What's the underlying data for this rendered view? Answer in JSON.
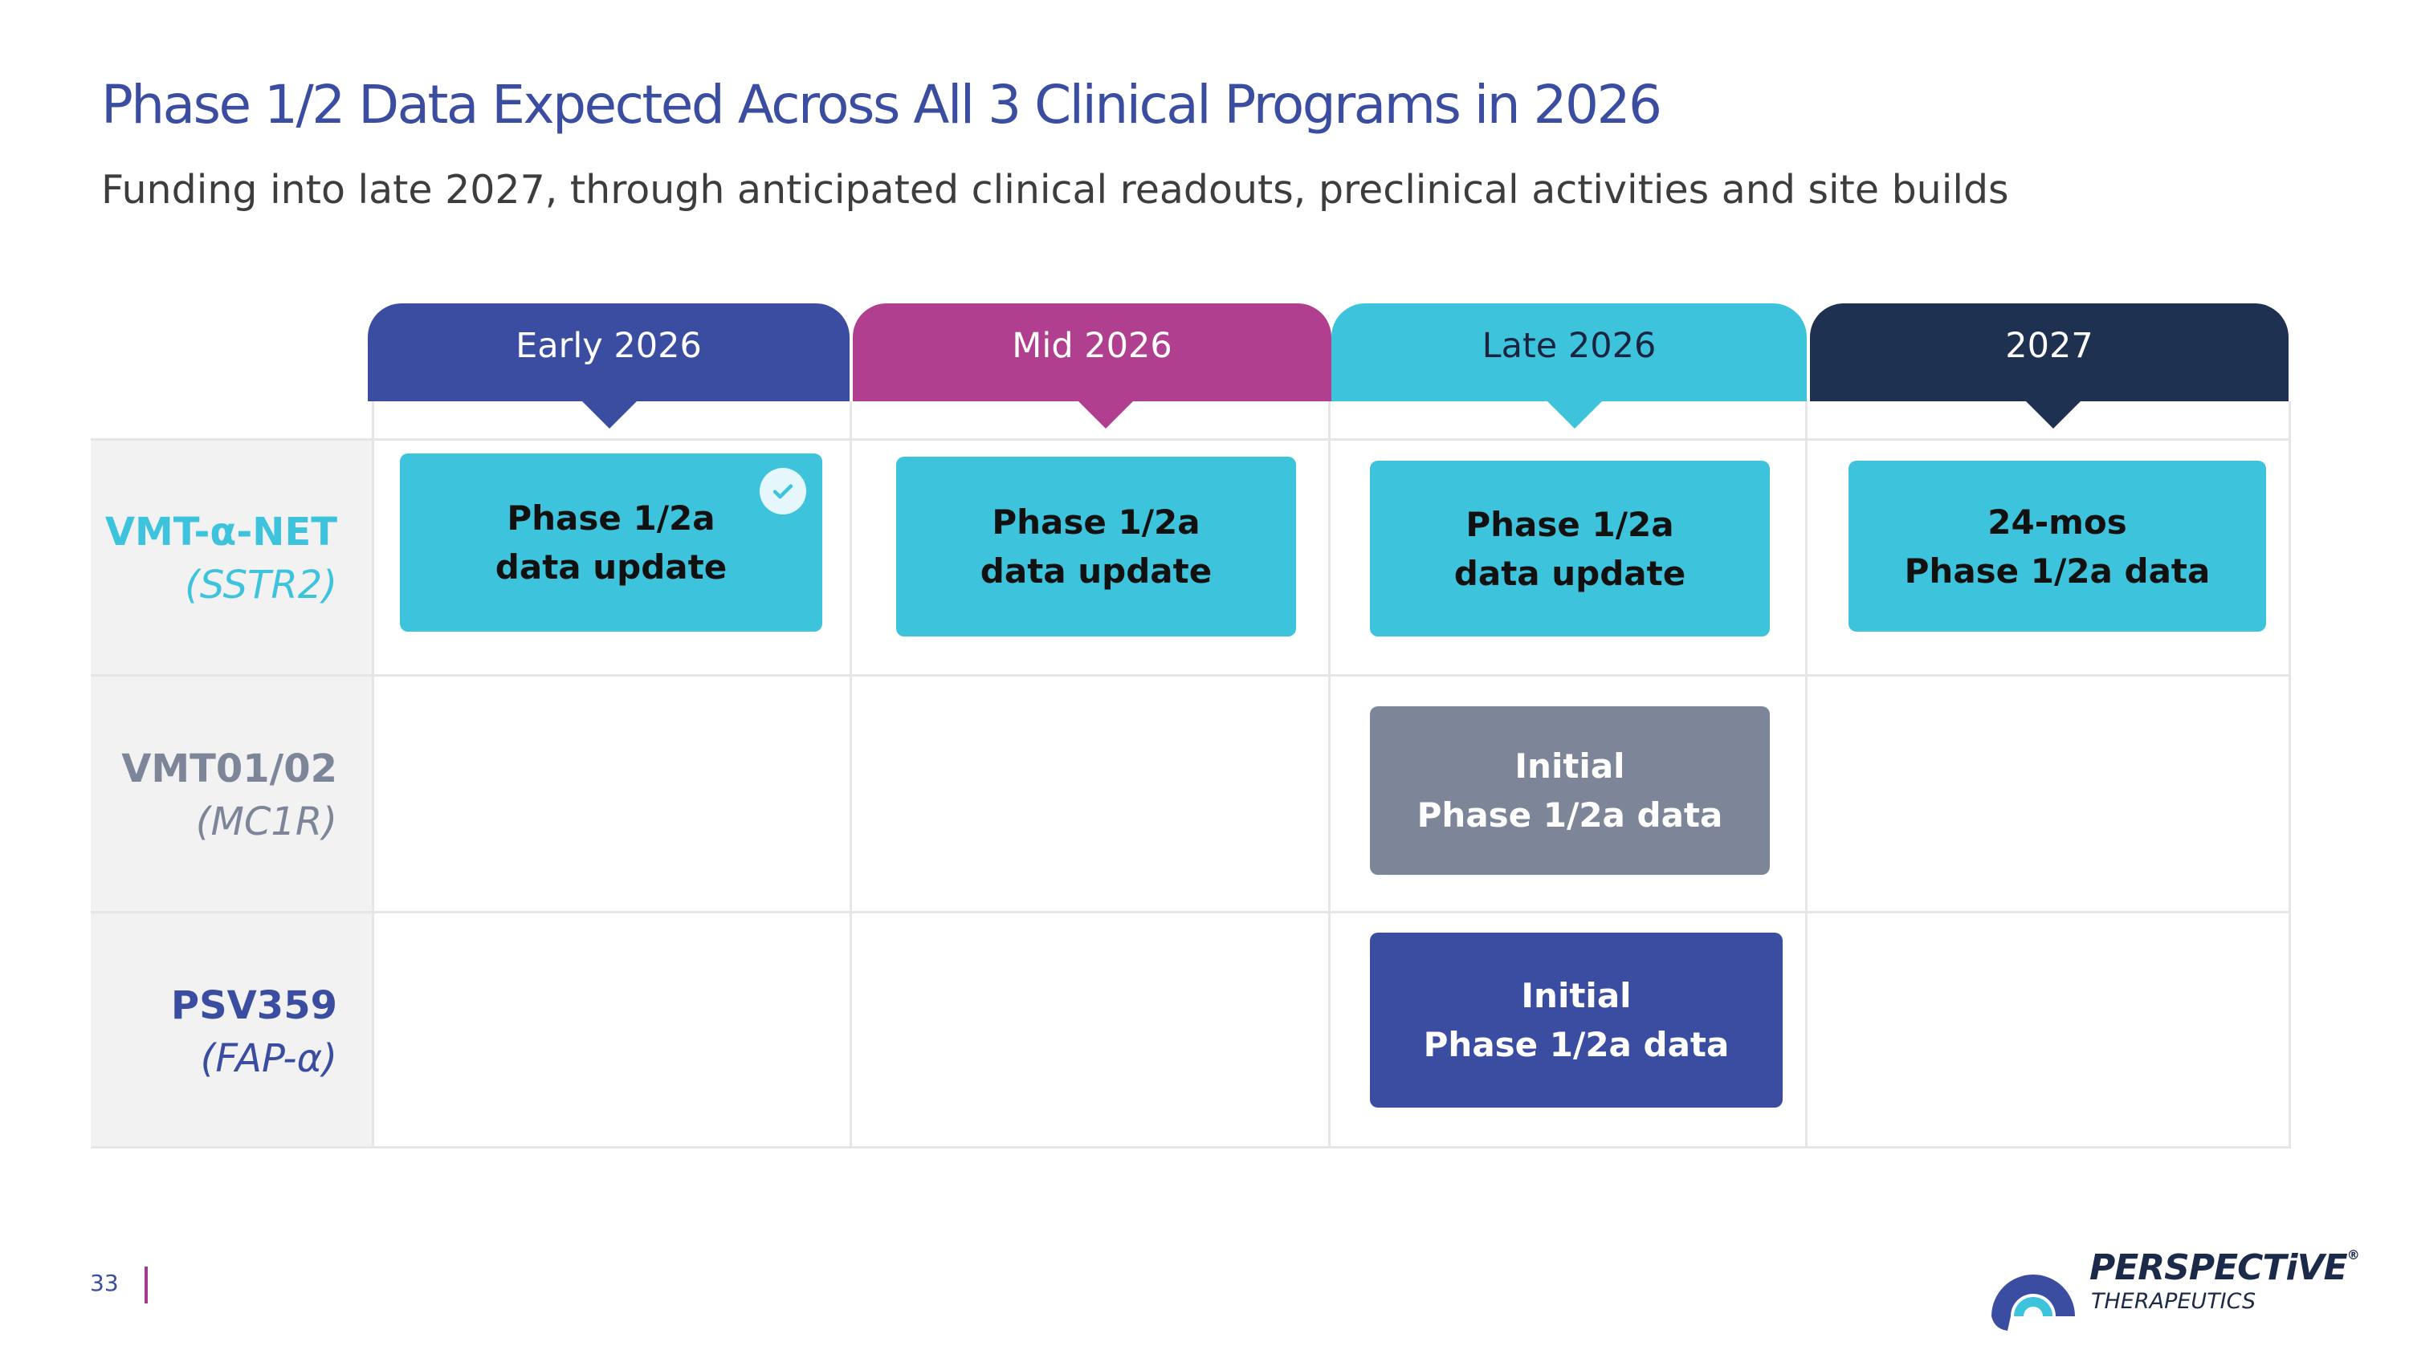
{
  "title": "Phase 1/2 Data Expected Across All 3 Clinical Programs in 2026",
  "subtitle": "Funding into late 2027, through anticipated clinical readouts, preclinical activities and site builds",
  "columns": [
    {
      "label": "Early 2026",
      "color": "#3a4da0"
    },
    {
      "label": "Mid 2026",
      "color": "#b0408f"
    },
    {
      "label": "Late 2026",
      "color": "#3ec3dd"
    },
    {
      "label": "2027",
      "color": "#1e3150"
    }
  ],
  "rows": [
    {
      "name": "VMT-α-NET",
      "target": "(SSTR2)",
      "color": "#3ec3dd"
    },
    {
      "name": "VMT01/02",
      "target": "(MC1R)",
      "color": "#7d8698"
    },
    {
      "name": "PSV359",
      "target": "(FAP-α)",
      "color": "#3a4da0"
    }
  ],
  "milestones": {
    "vmt_early": {
      "line1": "Phase 1/2a",
      "line2": "data update",
      "completed": true
    },
    "vmt_mid": {
      "line1": "Phase 1/2a",
      "line2": "data update"
    },
    "vmt_late": {
      "line1": "Phase 1/2a",
      "line2": "data update"
    },
    "vmt_2027": {
      "line1": "24-mos",
      "line2": "Phase 1/2a data"
    },
    "vmt0102_late": {
      "line1": "Initial",
      "line2": "Phase 1/2a data"
    },
    "psv359_late": {
      "line1": "Initial",
      "line2": "Phase 1/2a data"
    }
  },
  "footer": {
    "page_number": "33"
  },
  "logo": {
    "brand": "PERSPECTiVE",
    "registered": "®",
    "tagline": "THERAPEUTICS"
  }
}
